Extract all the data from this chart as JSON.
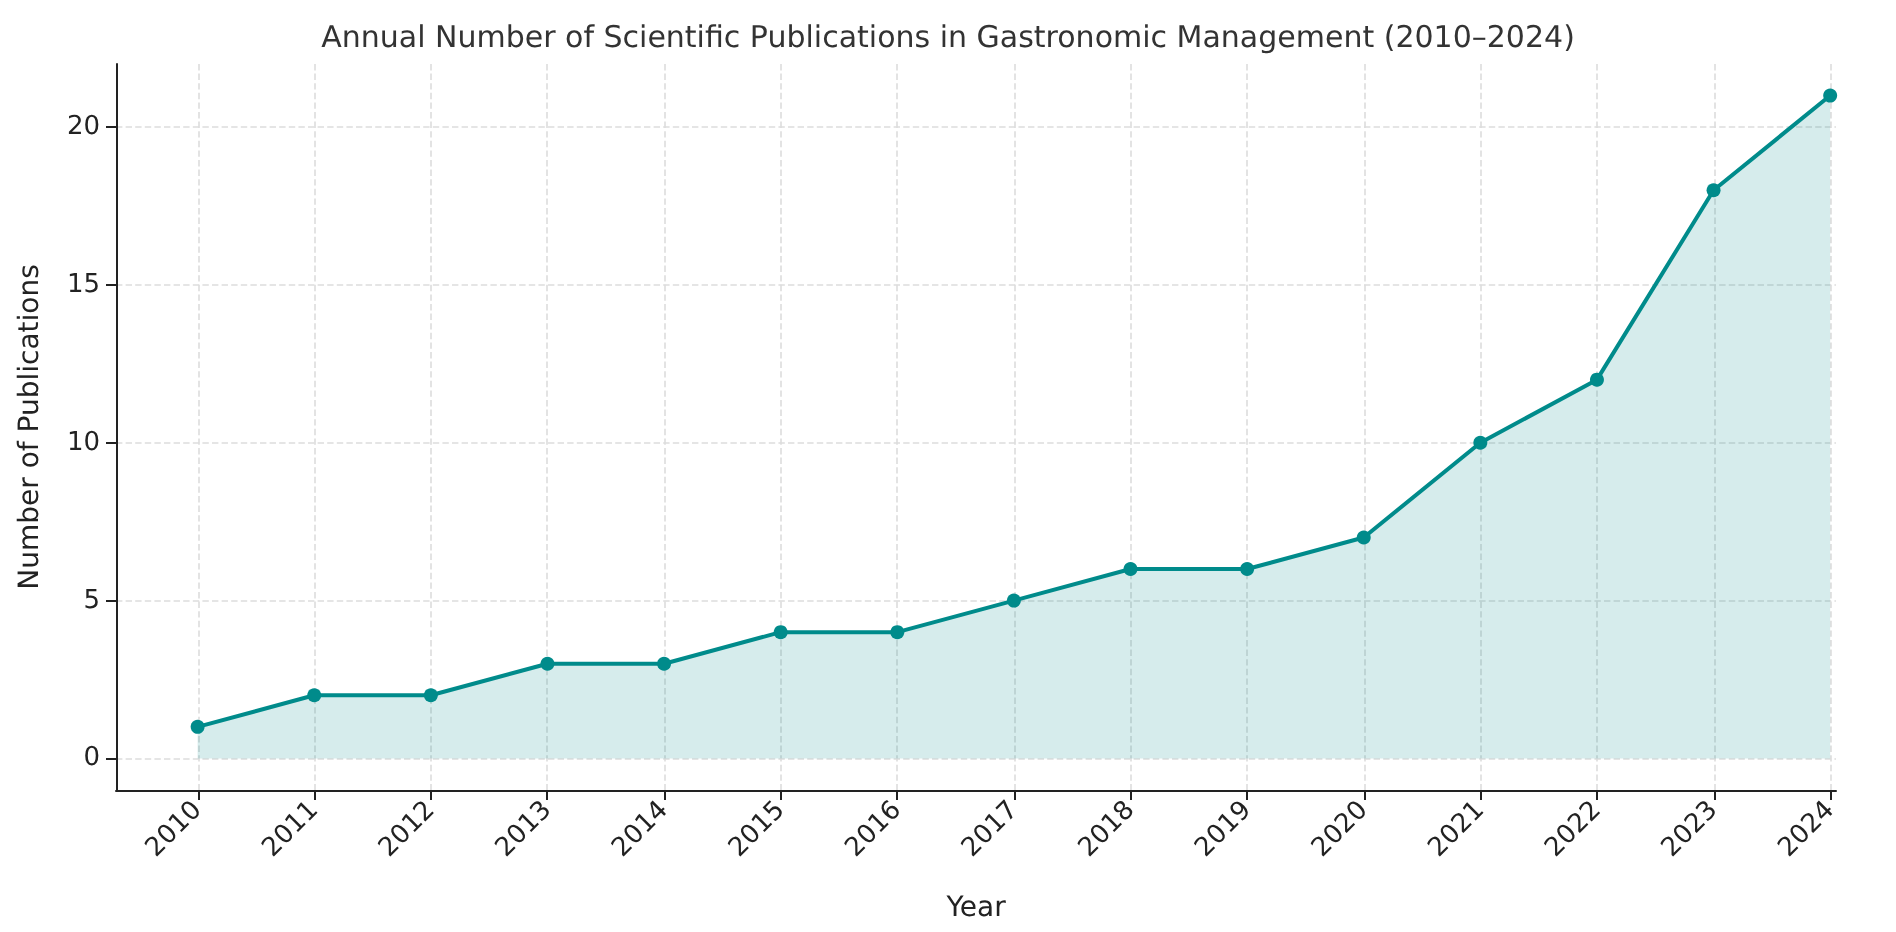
{
  "chart_data": {
    "type": "area",
    "title": "Annual Number of Scientific Publications in Gastronomic Management (2010–2024)",
    "xlabel": "Year",
    "ylabel": "Number of Publications",
    "x": [
      2010,
      2011,
      2012,
      2013,
      2014,
      2015,
      2016,
      2017,
      2018,
      2019,
      2020,
      2021,
      2022,
      2023,
      2024
    ],
    "series": [
      {
        "color": "#008b8b",
        "values": [
          1,
          2,
          2,
          3,
          3,
          4,
          4,
          5,
          6,
          6,
          7,
          10,
          12,
          18,
          21
        ]
      }
    ],
    "xlim": [
      2009.3,
      2024.05
    ],
    "xticks": [
      2010,
      2011,
      2012,
      2013,
      2014,
      2015,
      2016,
      2017,
      2018,
      2019,
      2020,
      2021,
      2022,
      2023,
      2024
    ],
    "ylim": [
      -1,
      22
    ],
    "yticks": [
      0,
      5,
      10,
      15,
      20
    ],
    "grid": true,
    "marker": "circle",
    "line_style": "solid"
  }
}
